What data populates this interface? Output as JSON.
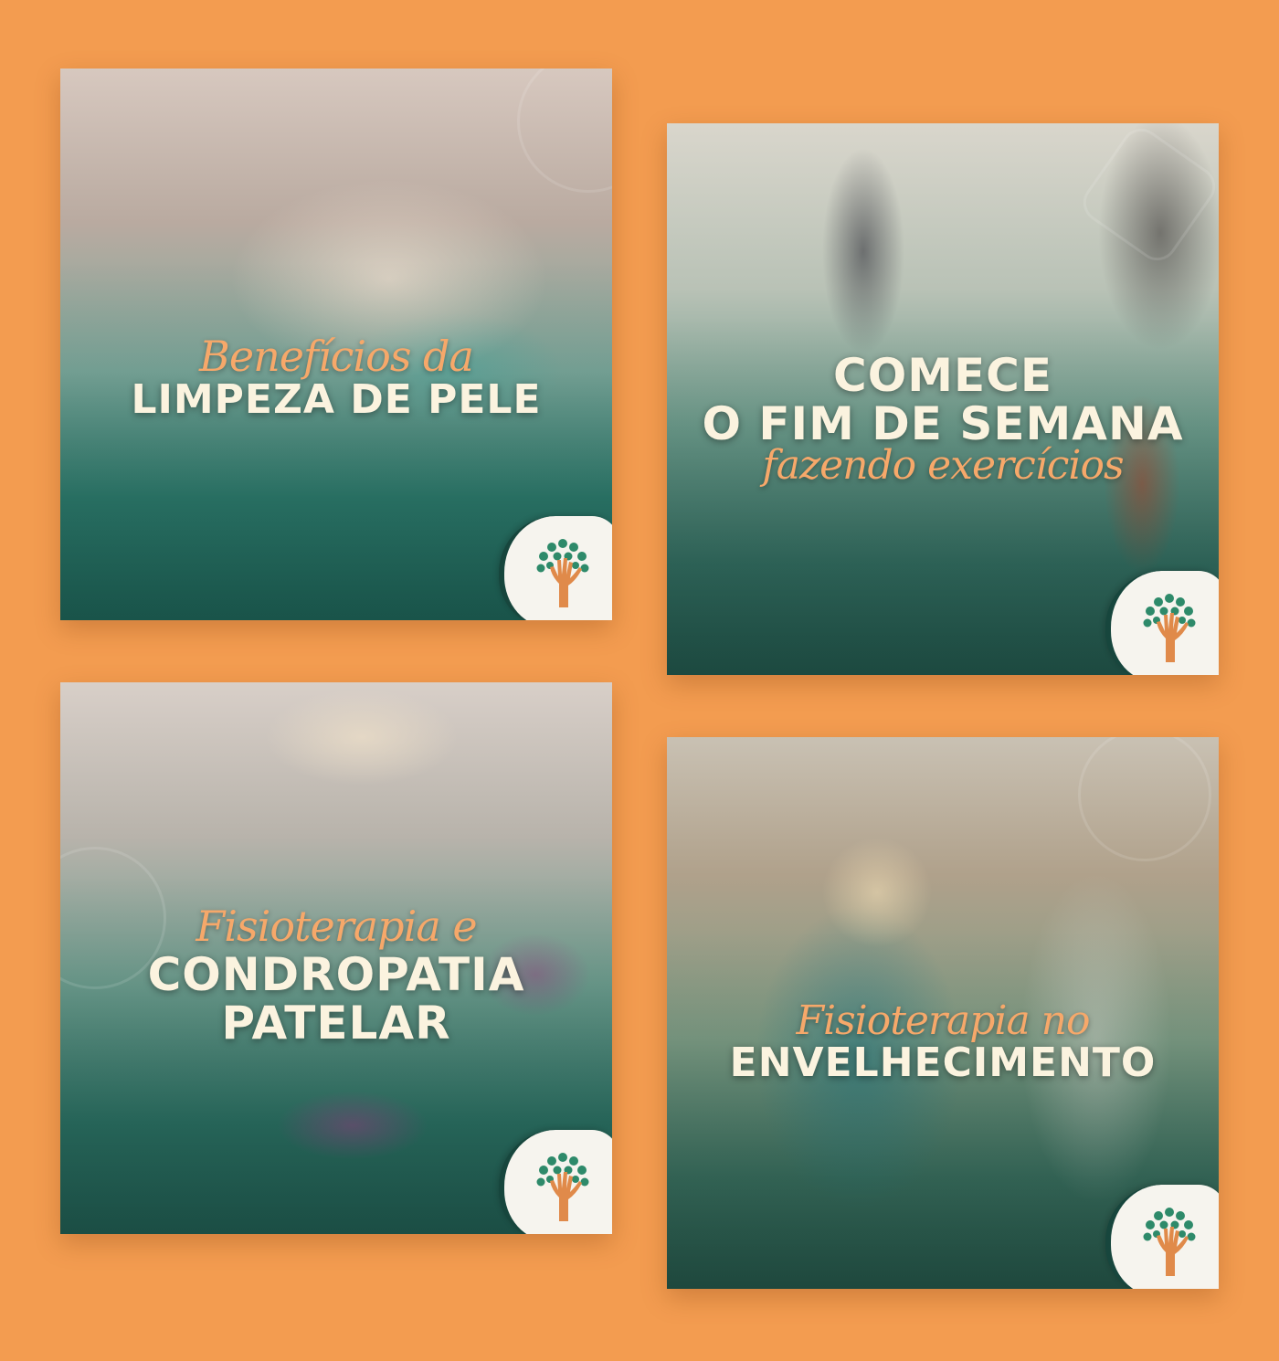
{
  "background_color": "#f39c50",
  "cards": [
    {
      "id": "card-1",
      "script_text": "Benefícios da",
      "caps_lines": [
        "LIMPEZA DE PELE"
      ],
      "logo_icon": "tree-hand-icon"
    },
    {
      "id": "card-2",
      "caps_lines": [
        "COMECE",
        "O FIM DE SEMANA"
      ],
      "script_text": "fazendo exercícios",
      "logo_icon": "tree-hand-icon"
    },
    {
      "id": "card-3",
      "script_text": "Fisioterapia e",
      "caps_lines": [
        "CONDROPATIA",
        "PATELAR"
      ],
      "logo_icon": "tree-hand-icon"
    },
    {
      "id": "card-4",
      "script_text": "Fisioterapia no",
      "caps_lines": [
        "ENVELHECIMENTO"
      ],
      "logo_icon": "tree-hand-icon"
    }
  ],
  "colors": {
    "script_text": "#f6a86a",
    "caps_text": "#fbf3df",
    "logo_leaves": "#2e8a6a",
    "logo_hand": "#e08a4a",
    "logo_border": "#17463d"
  }
}
